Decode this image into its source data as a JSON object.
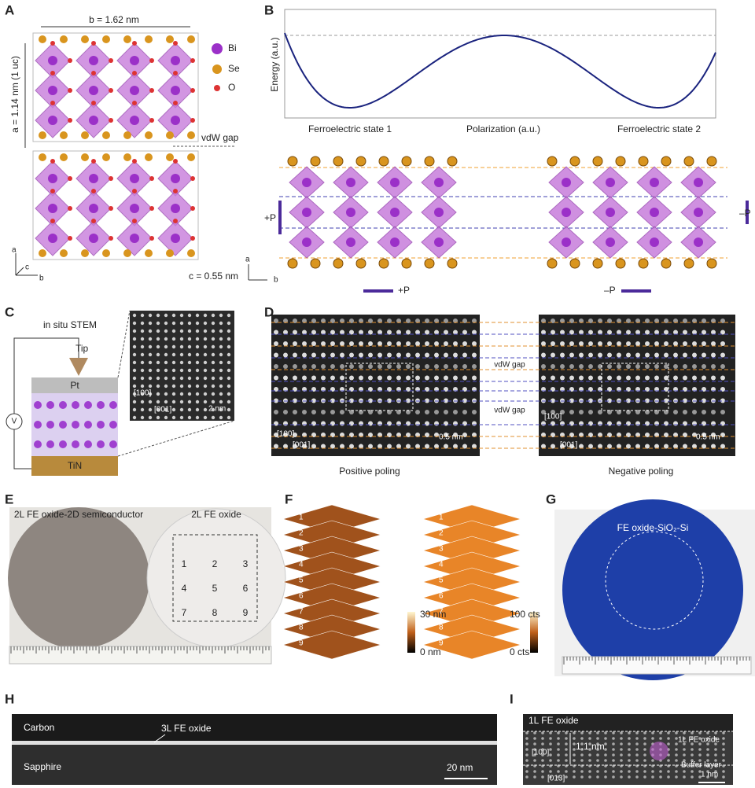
{
  "panels": {
    "a": {
      "label": "A",
      "b_dim": "b = 1.62 nm",
      "a_dim": "a = 1.14 nm (1 uc)",
      "legend": [
        "Bi",
        "Se",
        "O"
      ],
      "vdw": "vdW gap",
      "c_dim": "c = 0.55 nm",
      "axes": [
        "a",
        "c",
        "b"
      ]
    },
    "b": {
      "label": "B",
      "y_axis": "Energy (a.u.)",
      "x_axis": "Polarization (a.u.)",
      "state1": "Ferroelectric state 1",
      "state2": "Ferroelectric state 2",
      "plus_p": [
        "+P",
        "+P"
      ],
      "minus_p": [
        "–P",
        "–P"
      ],
      "axes": [
        "a",
        "b"
      ]
    },
    "c": {
      "label": "C",
      "title": "in situ STEM",
      "tip": "Tip",
      "top": "Pt",
      "source": "V",
      "bottom": "TiN",
      "dir1": "[100]",
      "dir2": "[001]",
      "scale": "2 nm"
    },
    "d": {
      "label": "D",
      "gap": [
        "vdW gap",
        "vdW gap"
      ],
      "dir1": [
        "[100]",
        "[100]"
      ],
      "dir2": [
        "[001]",
        "[001]"
      ],
      "scale": [
        "0.5 nm",
        "0.5 nm"
      ],
      "captions": [
        "Positive poling",
        "Negative poling"
      ]
    },
    "e": {
      "label": "E",
      "titles": [
        "2L FE oxide-2D semiconductor",
        "2L FE oxide"
      ],
      "grid": [
        "1",
        "2",
        "3",
        "4",
        "5",
        "6",
        "7",
        "8",
        "9"
      ]
    },
    "f": {
      "label": "F",
      "left": [
        "1",
        "2",
        "3",
        "4",
        "5",
        "6",
        "7",
        "8",
        "9"
      ],
      "right": [
        "1",
        "2",
        "3",
        "4",
        "5",
        "6",
        "7",
        "8",
        "9"
      ],
      "bar1": [
        "30 nm",
        "0 nm"
      ],
      "bar2": [
        "100 cts",
        "0 cts"
      ]
    },
    "g": {
      "label": "G",
      "title": "FE oxide-SiO₂-Si"
    },
    "h": {
      "label": "H",
      "top": "Carbon",
      "layer": "3L FE oxide",
      "bottom": "Sapphire",
      "scale": "20 nm"
    },
    "i": {
      "label": "I",
      "title": "1L FE oxide",
      "thickness": "1.1 nm",
      "layer": "1L FE oxide",
      "buffer": "Buffer layer",
      "dir1": "[100]",
      "dir2": "[013]",
      "scale": "1 nm"
    }
  }
}
